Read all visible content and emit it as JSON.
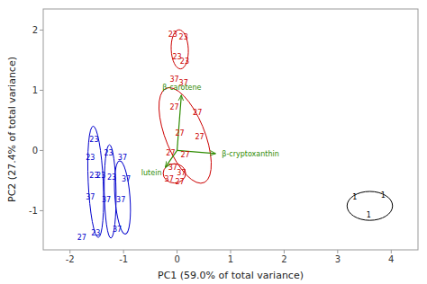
{
  "chart_data": {
    "type": "scatter",
    "xlabel": "PC1 (59.0% of total variance)",
    "ylabel": "PC2 (27.4% of total variance)",
    "xlim": [
      -2.5,
      4.5
    ],
    "ylim": [
      -1.65,
      2.35
    ],
    "xticks": [
      -2,
      -1,
      0,
      1,
      2,
      3,
      4
    ],
    "yticks": [
      -1,
      0,
      1,
      2
    ],
    "grid": false,
    "ellipses": [
      {
        "center": [
          0.05,
          1.68
        ],
        "width": 0.32,
        "height": 0.65,
        "angle": 3,
        "color": "#cc0000"
      },
      {
        "center": [
          0.15,
          0.25
        ],
        "width": 0.72,
        "height": 1.72,
        "angle": 25,
        "color": "#cc0000"
      },
      {
        "center": [
          -0.05,
          -0.38
        ],
        "width": 0.42,
        "height": 0.32,
        "angle": 0,
        "color": "#cc0000"
      },
      {
        "center": [
          -1.52,
          -0.52
        ],
        "width": 0.28,
        "height": 1.85,
        "angle": 3,
        "color": "#0000cc"
      },
      {
        "center": [
          -1.25,
          -0.68
        ],
        "width": 0.22,
        "height": 1.55,
        "angle": 1,
        "color": "#0000cc"
      },
      {
        "center": [
          -1.02,
          -0.78
        ],
        "width": 0.28,
        "height": 1.22,
        "angle": 5,
        "color": "#0000cc"
      },
      {
        "center": [
          3.6,
          -0.92
        ],
        "width": 0.85,
        "height": 0.48,
        "angle": 0,
        "color": "#000000"
      }
    ],
    "series": [
      {
        "color": "#cc0000",
        "x": [
          -0.08,
          0.12,
          0.0,
          0.14,
          -0.05,
          0.12
        ],
        "values": [
          1.92,
          1.88,
          1.55,
          1.48,
          1.18,
          1.12
        ],
        "labels": [
          "23",
          "23",
          "23",
          "23",
          "37",
          "37"
        ]
      },
      {
        "color": "#cc0000",
        "x": [
          -0.05,
          0.38,
          0.05,
          0.42,
          -0.12,
          0.15,
          -0.08,
          0.08,
          -0.15,
          0.05
        ],
        "values": [
          0.72,
          0.62,
          0.28,
          0.22,
          -0.05,
          -0.08,
          -0.28,
          -0.38,
          -0.48,
          -0.52
        ],
        "labels": [
          "27",
          "27",
          "27",
          "27",
          "27",
          "27",
          "37",
          "37",
          "37",
          "27"
        ]
      },
      {
        "color": "#0000cc",
        "x": [
          -1.55,
          -1.62,
          -1.55,
          -1.42,
          -1.62,
          -1.52,
          -1.78,
          -1.28,
          -1.22,
          -1.32,
          -1.12,
          -1.02,
          -0.95,
          -1.05
        ],
        "values": [
          0.18,
          -0.12,
          -0.42,
          -0.42,
          -0.78,
          -1.38,
          -1.45,
          -0.05,
          -0.45,
          -0.82,
          -1.32,
          -0.12,
          -0.48,
          -0.82
        ],
        "labels": [
          "23",
          "23",
          "23",
          "23",
          "37",
          "23",
          "27",
          "23",
          "23",
          "37",
          "37",
          "37",
          "37",
          "37"
        ]
      },
      {
        "color": "#000000",
        "x": [
          3.32,
          3.85,
          3.58
        ],
        "values": [
          -0.78,
          -0.75,
          -1.08
        ],
        "labels": [
          "1",
          "1",
          "1"
        ]
      }
    ],
    "arrows": [
      {
        "x0": 0.0,
        "y0": 0.0,
        "x": 0.08,
        "y": 0.92,
        "label": "β-carotene",
        "color": "#2e8b00"
      },
      {
        "x0": 0.0,
        "y0": 0.0,
        "x": 0.72,
        "y": -0.05,
        "label": "β-cryptoxanthin",
        "color": "#2e8b00"
      },
      {
        "x0": 0.0,
        "y0": 0.0,
        "x": -0.22,
        "y": -0.28,
        "label": "lutein",
        "color": "#2e8b00"
      }
    ]
  }
}
